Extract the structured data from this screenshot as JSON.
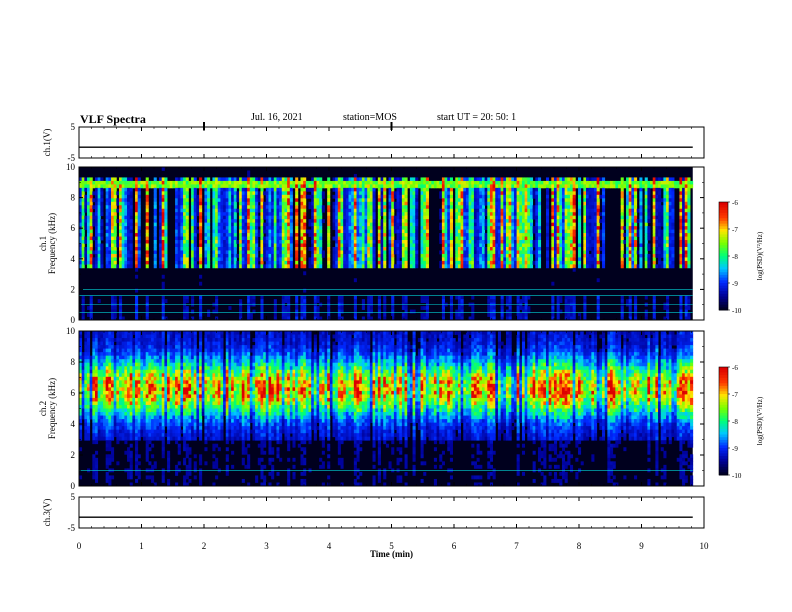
{
  "header": {
    "title": "VLF Spectra",
    "date": "Jul. 16, 2021",
    "station": "station=MOS",
    "start": "start UT =  20: 50: 1"
  },
  "chart_data": [
    {
      "type": "line",
      "ylabel": "ch.1(V)",
      "xlim": [
        0,
        10
      ],
      "ylim": [
        -5,
        5
      ],
      "yticks": [
        "5",
        "-5"
      ],
      "series": [
        {
          "x": [
            0,
            9.82
          ],
          "y": [
            -1.5,
            -1.5
          ]
        }
      ]
    },
    {
      "type": "heatmap",
      "ylabel": "ch.1\nFrequency (kHz)",
      "xlim": [
        0,
        10
      ],
      "ylim": [
        0,
        10
      ],
      "yticks": [
        "0",
        "2",
        "4",
        "6",
        "8",
        "10"
      ],
      "colorbar": {
        "label": "log(PSD)(V²/Hz)",
        "range": [
          -10,
          -6
        ],
        "ticks": [
          "-6",
          "-7",
          "-8",
          "-9",
          "-10"
        ]
      }
    },
    {
      "type": "heatmap",
      "ylabel": "ch.2\nFrequency (kHz)",
      "xlim": [
        0,
        10
      ],
      "ylim": [
        0,
        10
      ],
      "yticks": [
        "0",
        "2",
        "4",
        "6",
        "8",
        "10"
      ],
      "colorbar": {
        "label": "log(PSD)(V²/Hz)",
        "range": [
          -10,
          -6
        ],
        "ticks": [
          "-6",
          "-7",
          "-8",
          "-9",
          "-10"
        ]
      }
    },
    {
      "type": "line",
      "ylabel": "ch.3(V)",
      "xlim": [
        0,
        10
      ],
      "ylim": [
        -5,
        5
      ],
      "yticks": [
        "5",
        "-5"
      ],
      "series": [
        {
          "x": [
            0,
            9.82
          ],
          "y": [
            -1.5,
            -1.5
          ]
        }
      ],
      "xlabel": "Time (min)",
      "xticks": [
        "0",
        "1",
        "2",
        "3",
        "4",
        "5",
        "6",
        "7",
        "8",
        "9",
        "10"
      ]
    }
  ]
}
